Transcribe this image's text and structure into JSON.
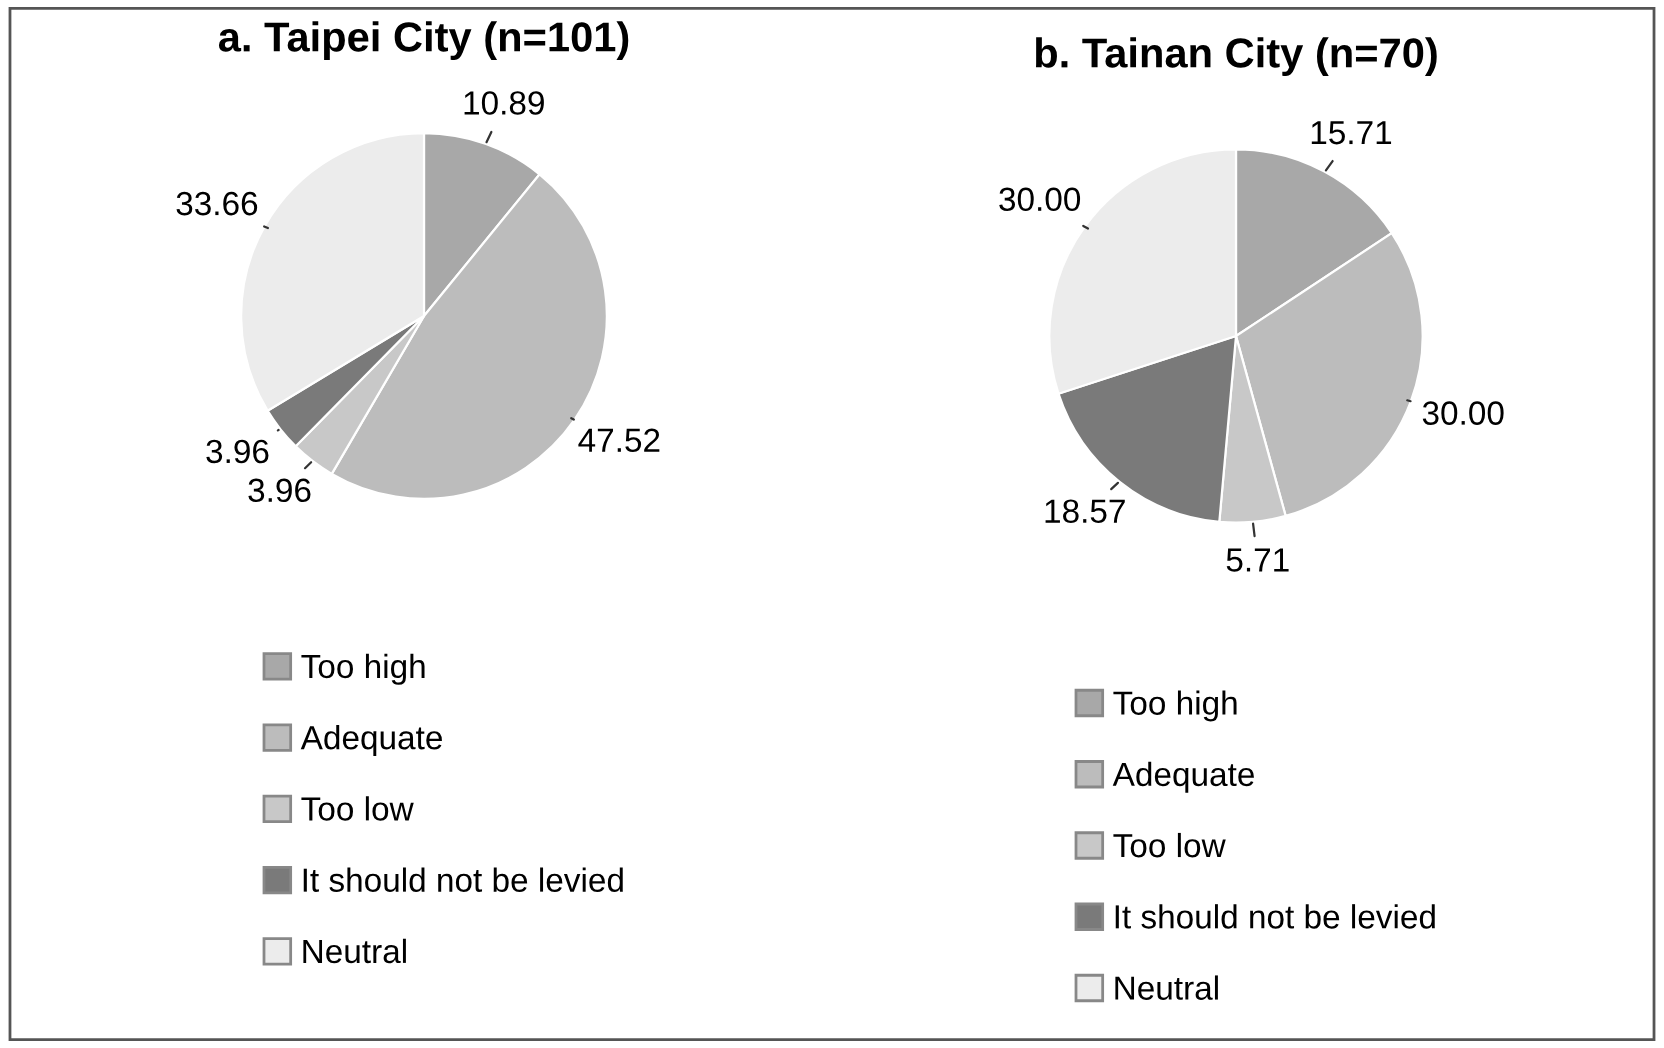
{
  "chart_data": [
    {
      "type": "pie",
      "title": "a. Taipei City (n=101)",
      "categories": [
        "Too high",
        "Adequate",
        "Too low",
        "It should not be levied",
        "Neutral"
      ],
      "values": [
        10.89,
        47.52,
        3.96,
        3.96,
        33.66
      ],
      "value_labels": [
        "10.89",
        "47.52",
        "3.96",
        "3.96",
        "33.66"
      ],
      "colors": [
        "#a8a8a8",
        "#bcbcbc",
        "#c8c8c8",
        "#7a7a7a",
        "#ececec"
      ],
      "legend": "bottom"
    },
    {
      "type": "pie",
      "title": "b. Tainan City (n=70)",
      "categories": [
        "Too high",
        "Adequate",
        "Too low",
        "It should not be levied",
        "Neutral"
      ],
      "values": [
        15.71,
        30.0,
        5.71,
        18.57,
        30.0
      ],
      "value_labels": [
        "15.71",
        "30.00",
        "5.71",
        "18.57",
        "30.00"
      ],
      "colors": [
        "#a8a8a8",
        "#bcbcbc",
        "#c8c8c8",
        "#7a7a7a",
        "#ececec"
      ],
      "legend": "bottom"
    }
  ]
}
